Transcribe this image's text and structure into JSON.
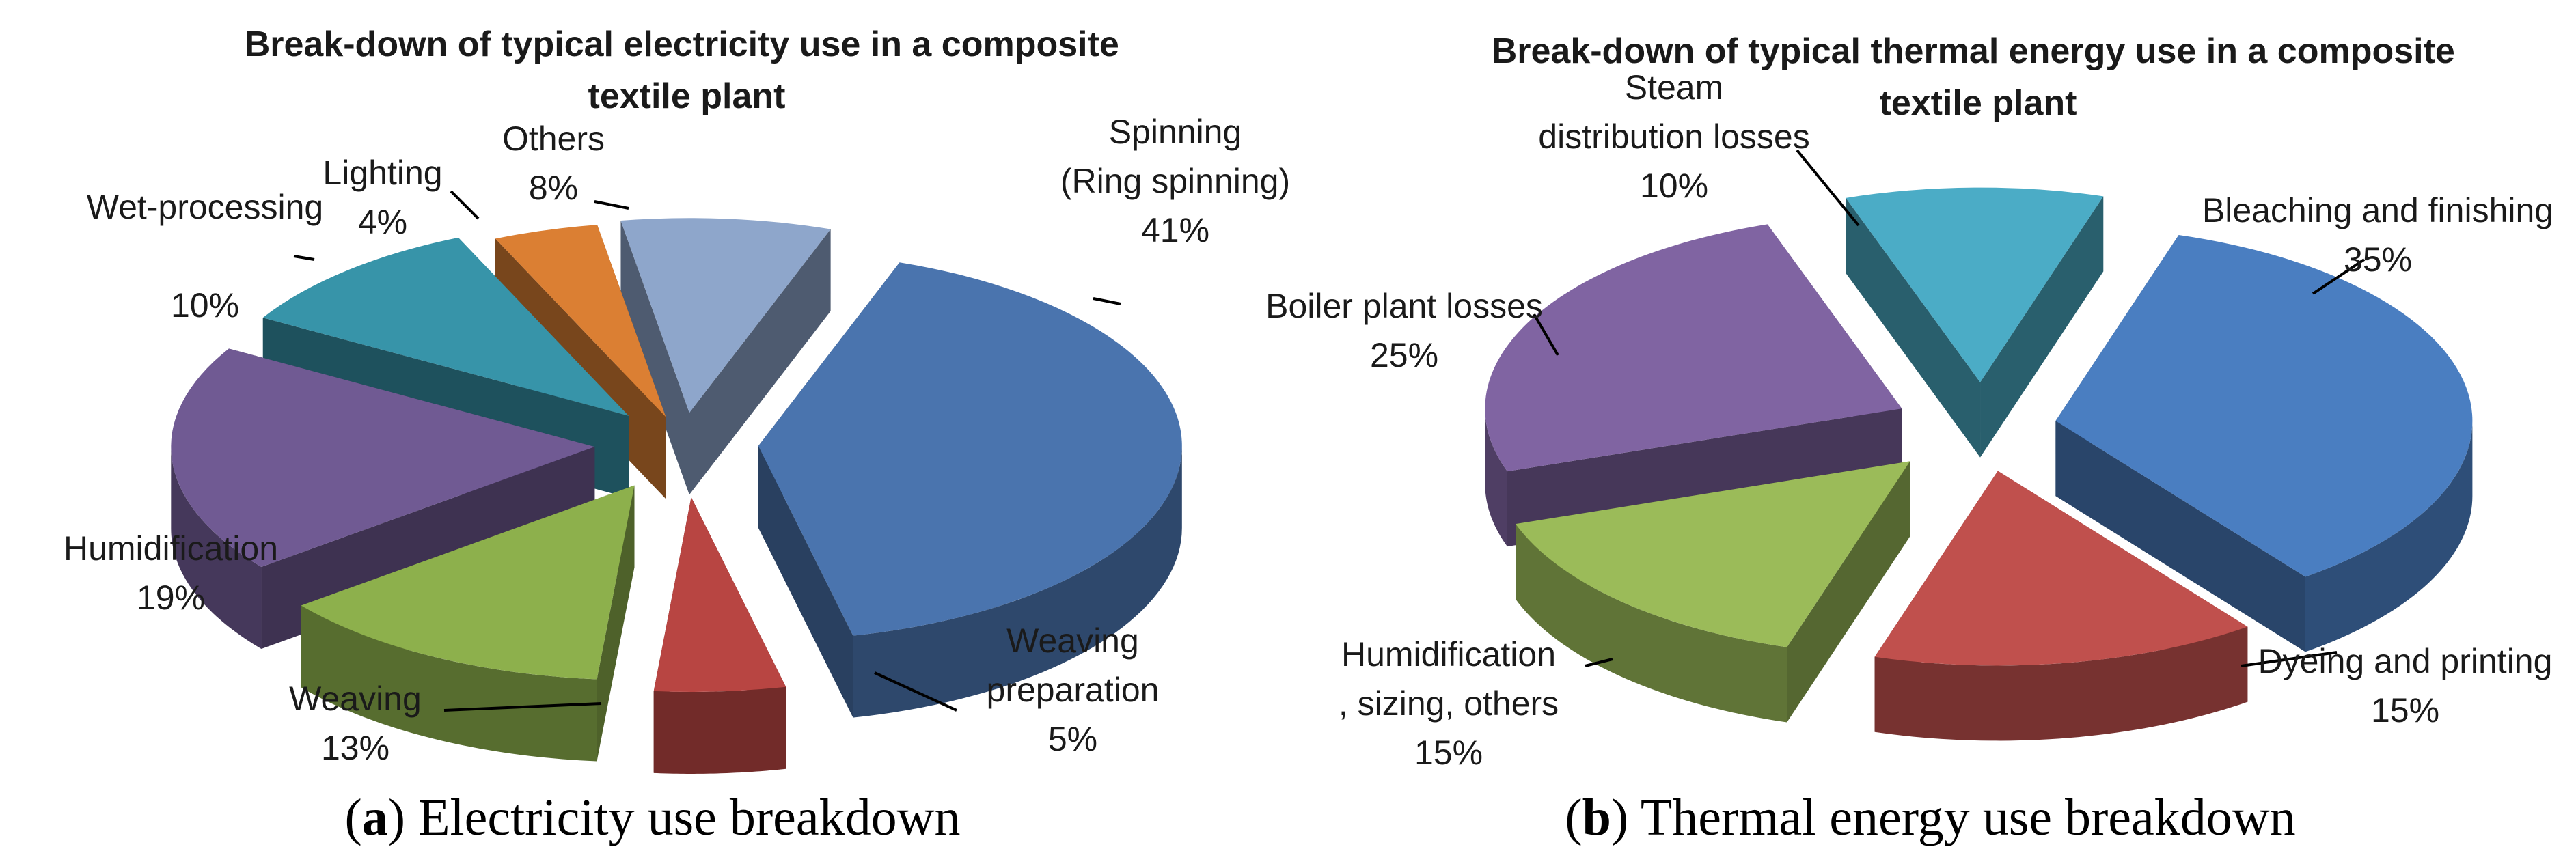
{
  "chart_data": [
    {
      "type": "pie",
      "style": "3d-exploded",
      "title": "Break-down of typical electricity use in a composite textile plant",
      "caption_letter": "a",
      "caption_text": "Electricity use breakdown",
      "slices": [
        {
          "label": "Spinning (Ring spinning)",
          "value": 41,
          "value_label": "41%",
          "color": "#4A74AE"
        },
        {
          "label": "Weaving preparation",
          "value": 5,
          "value_label": "5%",
          "color": "#B84542"
        },
        {
          "label": "Weaving",
          "value": 13,
          "value_label": "13%",
          "color": "#8DB04C"
        },
        {
          "label": "Humidification",
          "value": 19,
          "value_label": "19%",
          "color": "#705A93"
        },
        {
          "label": "Wet-processing",
          "value": 10,
          "value_label": "10%",
          "color": "#3794A9"
        },
        {
          "label": "Lighting",
          "value": 4,
          "value_label": "4%",
          "color": "#DB7F33"
        },
        {
          "label": "Others",
          "value": 8,
          "value_label": "8%",
          "color": "#8EA6CB"
        }
      ]
    },
    {
      "type": "pie",
      "style": "3d-exploded",
      "title": "Break-down of typical thermal energy use in a composite textile plant",
      "caption_letter": "b",
      "caption_text": "Thermal energy use breakdown",
      "slices": [
        {
          "label": "Bleaching and finishing",
          "value": 35,
          "value_label": "35%",
          "color": "#4A7EC1"
        },
        {
          "label": "Dyeing and printing",
          "value": 15,
          "value_label": "15%",
          "color": "#C0504D"
        },
        {
          "label": "Humidification , sizing, others",
          "value": 15,
          "value_label": "15%",
          "color": "#9BBB59"
        },
        {
          "label": "Boiler plant losses",
          "value": 25,
          "value_label": "25%",
          "color": "#8064A2"
        },
        {
          "label": "Steam distribution losses",
          "value": 10,
          "value_label": "10%",
          "color": "#4BACC6"
        }
      ]
    }
  ]
}
